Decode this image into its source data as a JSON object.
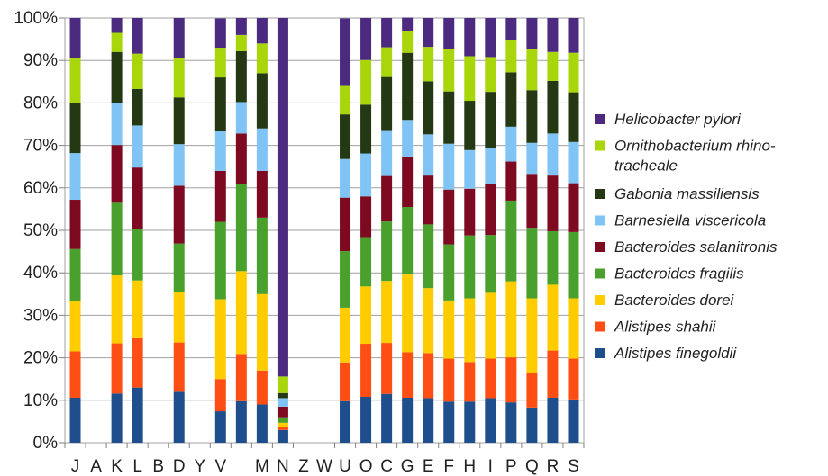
{
  "chart_data": {
    "type": "bar",
    "stacked": true,
    "normalized": true,
    "categories": [
      "J",
      "A",
      "K",
      "L",
      "B",
      "D",
      "Y",
      "V",
      "",
      "M",
      "N",
      "Z",
      "W",
      "U",
      "O",
      "C",
      "G",
      "E",
      "F",
      "H",
      "I",
      "P",
      "Q",
      "R",
      "S"
    ],
    "ylim": [
      0,
      100
    ],
    "yticks": [
      "0%",
      "10%",
      "20%",
      "30%",
      "40%",
      "50%",
      "60%",
      "70%",
      "80%",
      "90%",
      "100%"
    ],
    "grid": true,
    "legend_position": "right",
    "series": [
      {
        "name": "Alistipes finegoldii",
        "color": "#1f4e8c",
        "values": [
          10.6,
          0,
          11.6,
          13,
          0,
          12,
          0,
          7.4,
          9.8,
          9,
          3,
          0,
          0,
          9.8,
          10.8,
          11.5,
          10.6,
          10.5,
          9.7,
          9.7,
          10.5,
          9.5,
          8.3,
          10.6,
          10.2
        ]
      },
      {
        "name": "Alistipes shahii",
        "color": "#ff4e14",
        "values": [
          10.9,
          0,
          11.8,
          11.6,
          0,
          11.6,
          0,
          7.6,
          11.1,
          8,
          0.8,
          0,
          0,
          9.1,
          12.5,
          12,
          10.7,
          10.6,
          10.1,
          9.3,
          9.3,
          10.6,
          8.2,
          11.1,
          9.6
        ]
      },
      {
        "name": "Bacteroides dorei",
        "color": "#ffcc00",
        "values": [
          11.8,
          0,
          16,
          13.6,
          0,
          11.8,
          0,
          18.8,
          19.5,
          18,
          0.9,
          0,
          0,
          12.9,
          13.5,
          14.6,
          18.3,
          15.3,
          13.7,
          15,
          15.5,
          17.9,
          17.5,
          15.5,
          14.2
        ]
      },
      {
        "name": "Bacteroides fragilis",
        "color": "#4aa02c",
        "values": [
          12.3,
          0,
          17.1,
          12.1,
          0,
          11.5,
          0,
          18.2,
          20.5,
          18,
          1.3,
          0,
          0,
          13.3,
          11.6,
          14,
          15.9,
          15,
          13.2,
          14.8,
          13.6,
          19,
          16.6,
          12.6,
          15.6
        ]
      },
      {
        "name": "Bacteroides salanitronis",
        "color": "#7e0a21",
        "values": [
          11.6,
          0,
          13.6,
          14.5,
          0,
          13.6,
          0,
          12,
          11.9,
          11,
          2.5,
          0,
          0,
          12.6,
          9.6,
          10.7,
          11.9,
          11.5,
          12.9,
          11,
          12.1,
          9.2,
          12.7,
          13.1,
          11.5
        ]
      },
      {
        "name": "Barnesiella viscericola",
        "color": "#7fc4f5",
        "values": [
          11,
          0,
          9.9,
          9.9,
          0,
          9.8,
          0,
          9.3,
          7.4,
          10,
          2,
          0,
          0,
          9.1,
          10.1,
          10.6,
          8.6,
          9.7,
          10.8,
          9.1,
          8.4,
          8.2,
          7.3,
          9.9,
          9.7
        ]
      },
      {
        "name": "Gabonia massiliensis",
        "color": "#243813",
        "values": [
          11.9,
          0,
          12,
          8.6,
          0,
          11,
          0,
          12.7,
          12,
          13,
          1.2,
          0,
          0,
          10.5,
          11.5,
          12.7,
          15.8,
          12.5,
          12.3,
          11.6,
          13.2,
          12.8,
          12.4,
          12.4,
          11.7
        ]
      },
      {
        "name": "Ornithobacterium rhino-tracheale",
        "color": "#a8d60a",
        "values": [
          10.5,
          0,
          4.5,
          8.3,
          0,
          9.2,
          0,
          7,
          3.8,
          7,
          3.9,
          0,
          0,
          6.7,
          10.5,
          7,
          5.1,
          8.1,
          9.9,
          10.5,
          8.2,
          7.5,
          9.8,
          6.8,
          9.3
        ]
      },
      {
        "name": "Helicobacter pylori",
        "color": "#4b2a80",
        "values": [
          9.4,
          0,
          3.5,
          8.4,
          0,
          9.5,
          0,
          6.9,
          4,
          6,
          84.4,
          0,
          0,
          15.9,
          9.9,
          6.9,
          3.2,
          6.8,
          7.4,
          9,
          9.2,
          5.3,
          7.2,
          8,
          8.2
        ]
      }
    ]
  }
}
